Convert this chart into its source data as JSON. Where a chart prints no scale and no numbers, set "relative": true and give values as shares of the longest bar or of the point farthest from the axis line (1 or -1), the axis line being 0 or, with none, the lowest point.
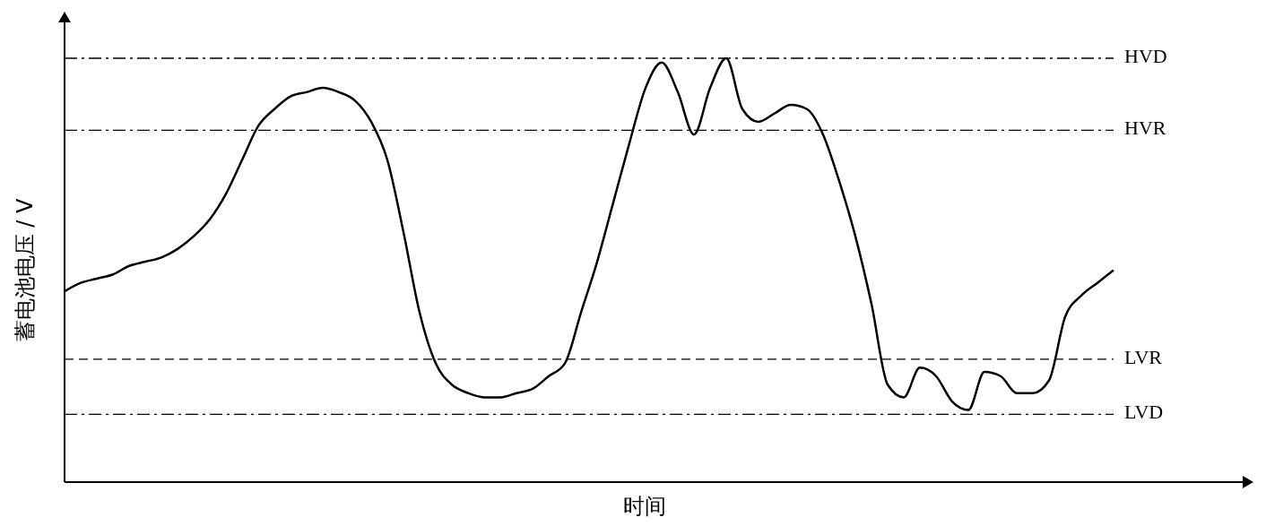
{
  "chart_data": {
    "type": "line",
    "relative": true,
    "xlabel": "时间",
    "ylabel": "蓄电池电压 / V",
    "categories": [
      null,
      null,
      null,
      null,
      null,
      null,
      null,
      null,
      null,
      null,
      null,
      null,
      null,
      null,
      null,
      null,
      null,
      null,
      null,
      null,
      null,
      null,
      null,
      null,
      null,
      null,
      null,
      null,
      null,
      null,
      null,
      null,
      null,
      null,
      null,
      null,
      null,
      null,
      null,
      null,
      null,
      null,
      null,
      null,
      null,
      null,
      null,
      null,
      null,
      null,
      null,
      null,
      null,
      null,
      null,
      null,
      null,
      null,
      null,
      null,
      null,
      null,
      null,
      null,
      null,
      null,
      null,
      null,
      null,
      null,
      null,
      null,
      null,
      null
    ],
    "series": [
      {
        "color": "#000000",
        "values": [
          0.45,
          0.47,
          0.48,
          0.49,
          0.51,
          0.52,
          0.53,
          0.55,
          0.58,
          0.62,
          0.68,
          0.76,
          0.84,
          0.88,
          0.91,
          0.92,
          0.93,
          0.92,
          0.9,
          0.85,
          0.76,
          0.59,
          0.4,
          0.28,
          0.23,
          0.21,
          0.2,
          0.2,
          0.21,
          0.22,
          0.25,
          0.28,
          0.4,
          0.52,
          0.66,
          0.8,
          0.93,
          0.99,
          0.92,
          0.82,
          0.93,
          1.0,
          0.88,
          0.85,
          0.87,
          0.89,
          0.88,
          0.82,
          0.71,
          0.58,
          0.42,
          0.23,
          0.2,
          0.27,
          0.25,
          0.19,
          0.17,
          0.26,
          0.25,
          0.21,
          0.21,
          0.24,
          0.39,
          0.44,
          0.47,
          0.5,
          null,
          null,
          null,
          null,
          null,
          null,
          null,
          null
        ]
      }
    ],
    "ref_lines": [
      {
        "axis": "y",
        "value": 1.0,
        "label": "HVD",
        "line_style": "dashdot"
      },
      {
        "axis": "y",
        "value": 0.83,
        "label": "HVR",
        "line_style": "dashdot"
      },
      {
        "axis": "y",
        "value": 0.29,
        "label": "LVR",
        "line_style": "dashed"
      },
      {
        "axis": "y",
        "value": 0.16,
        "label": "LVD",
        "line_style": "dashdot"
      }
    ]
  }
}
